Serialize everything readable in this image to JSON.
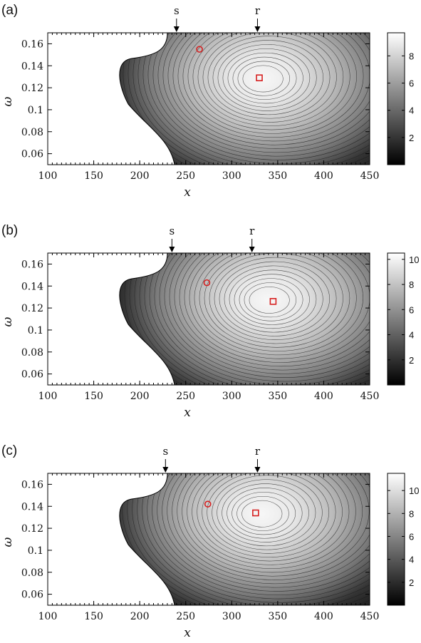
{
  "figure": {
    "panel_labels": [
      "(a)",
      "(b)",
      "(c)"
    ]
  },
  "chart_data": [
    {
      "type": "heatmap",
      "panel_label": "(a)",
      "xlabel": "x",
      "ylabel": "ω",
      "xlim": [
        100,
        450
      ],
      "ylim": [
        0.05,
        0.17
      ],
      "x_ticks": [
        100,
        150,
        200,
        250,
        300,
        350,
        400,
        450
      ],
      "y_ticks": [
        0.06,
        0.08,
        0.1,
        0.12,
        0.14,
        0.16
      ],
      "colorbar": {
        "min": 0,
        "max": 9.7,
        "ticks": [
          2,
          4,
          6,
          8
        ],
        "colormap": "grayscale (black low, white high)"
      },
      "arrows": [
        {
          "label": "s",
          "x": 240
        },
        {
          "label": "r",
          "x": 328
        }
      ],
      "markers": [
        {
          "shape": "circle",
          "x": 265,
          "y": 0.155,
          "color": "#d62020"
        },
        {
          "shape": "square",
          "x": 330,
          "y": 0.129,
          "color": "#d62020"
        }
      ],
      "peak": {
        "x": 333,
        "y": 0.128,
        "value": 9.7
      },
      "grid": false
    },
    {
      "type": "heatmap",
      "panel_label": "(b)",
      "xlabel": "x",
      "ylabel": "ω",
      "xlim": [
        100,
        450
      ],
      "ylim": [
        0.05,
        0.17
      ],
      "x_ticks": [
        100,
        150,
        200,
        250,
        300,
        350,
        400,
        450
      ],
      "y_ticks": [
        0.06,
        0.08,
        0.1,
        0.12,
        0.14,
        0.16
      ],
      "colorbar": {
        "min": 0,
        "max": 10.5,
        "ticks": [
          2,
          4,
          6,
          8,
          10
        ],
        "colormap": "grayscale (black low, white high)"
      },
      "arrows": [
        {
          "label": "s",
          "x": 235
        },
        {
          "label": "r",
          "x": 322
        }
      ],
      "markers": [
        {
          "shape": "circle",
          "x": 273,
          "y": 0.143,
          "color": "#d62020"
        },
        {
          "shape": "square",
          "x": 345,
          "y": 0.126,
          "color": "#d62020"
        }
      ],
      "peak": {
        "x": 340,
        "y": 0.127,
        "value": 10.5
      },
      "grid": false
    },
    {
      "type": "heatmap",
      "panel_label": "(c)",
      "xlabel": "x",
      "ylabel": "ω",
      "xlim": [
        100,
        450
      ],
      "ylim": [
        0.05,
        0.17
      ],
      "x_ticks": [
        100,
        150,
        200,
        250,
        300,
        350,
        400,
        450
      ],
      "y_ticks": [
        0.06,
        0.08,
        0.1,
        0.12,
        0.14,
        0.16
      ],
      "colorbar": {
        "min": 0,
        "max": 11.5,
        "ticks": [
          2,
          4,
          6,
          8,
          10
        ],
        "colormap": "grayscale (black low, white high)"
      },
      "arrows": [
        {
          "label": "s",
          "x": 228
        },
        {
          "label": "r",
          "x": 328
        }
      ],
      "markers": [
        {
          "shape": "circle",
          "x": 274,
          "y": 0.142,
          "color": "#d62020"
        },
        {
          "shape": "square",
          "x": 326,
          "y": 0.134,
          "color": "#d62020"
        }
      ],
      "peak": {
        "x": 332,
        "y": 0.133,
        "value": 11.5
      },
      "grid": false
    }
  ]
}
